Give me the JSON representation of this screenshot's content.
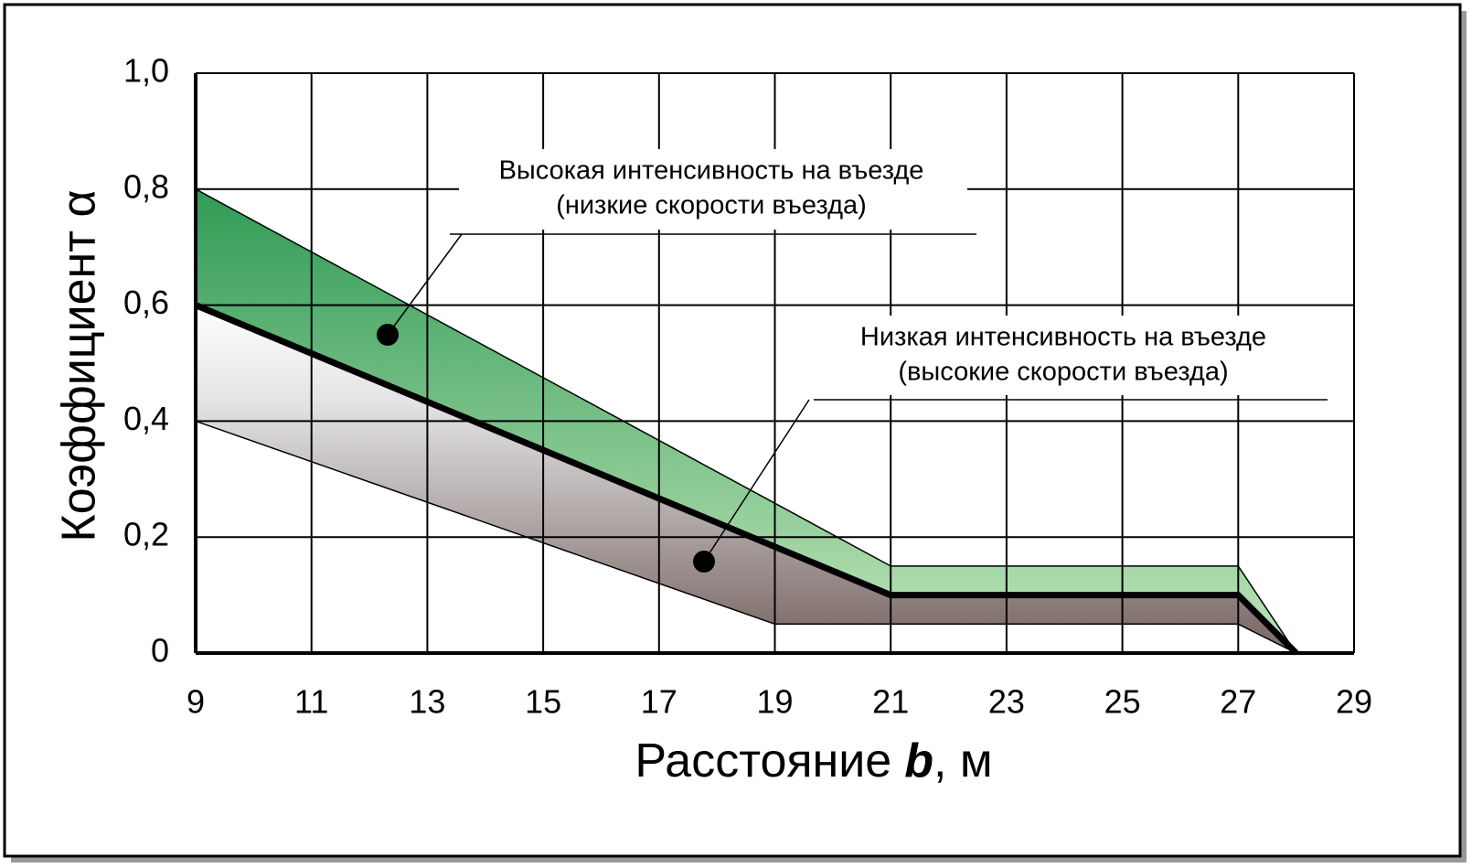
{
  "chart_data": {
    "type": "band",
    "ylabel": "Коэффициент α",
    "xlabel": {
      "before": "Расстояние",
      "emph": "b",
      "after": ", м"
    },
    "xlim": [
      9,
      29
    ],
    "xticks": [
      9,
      11,
      13,
      15,
      17,
      19,
      21,
      23,
      25,
      27,
      29
    ],
    "ylim": [
      0,
      1.0
    ],
    "yticks": [
      0,
      {
        "value": 0.2,
        "label": "0,2"
      },
      {
        "value": 0.4,
        "label": "0,4"
      },
      {
        "value": 0.6,
        "label": "0,6"
      },
      {
        "value": 0.8,
        "label": "0,8"
      },
      {
        "value": 1.0,
        "label": "1,0"
      }
    ],
    "grid": true,
    "series": [
      {
        "color": "#3a9f5e",
        "x": [
          9,
          21,
          27,
          28
        ],
        "values": [
          0.8,
          0.15,
          0.15,
          0
        ]
      },
      {
        "color": "#000000",
        "x": [
          9,
          21,
          27,
          28
        ],
        "values": [
          0.6,
          0.1,
          0.1,
          0
        ]
      },
      {
        "color": "#8a7875",
        "x": [
          9,
          19,
          27,
          28
        ],
        "values": [
          0.4,
          0.05,
          0.05,
          0
        ]
      }
    ],
    "annotations": [
      {
        "lines": [
          "Высокая интенсивность на въезде",
          "(низкие скорости въезда)"
        ]
      },
      {
        "lines": [
          "Низкая интенсивность на въезде",
          "(высокие скорости въезда)"
        ]
      }
    ]
  }
}
